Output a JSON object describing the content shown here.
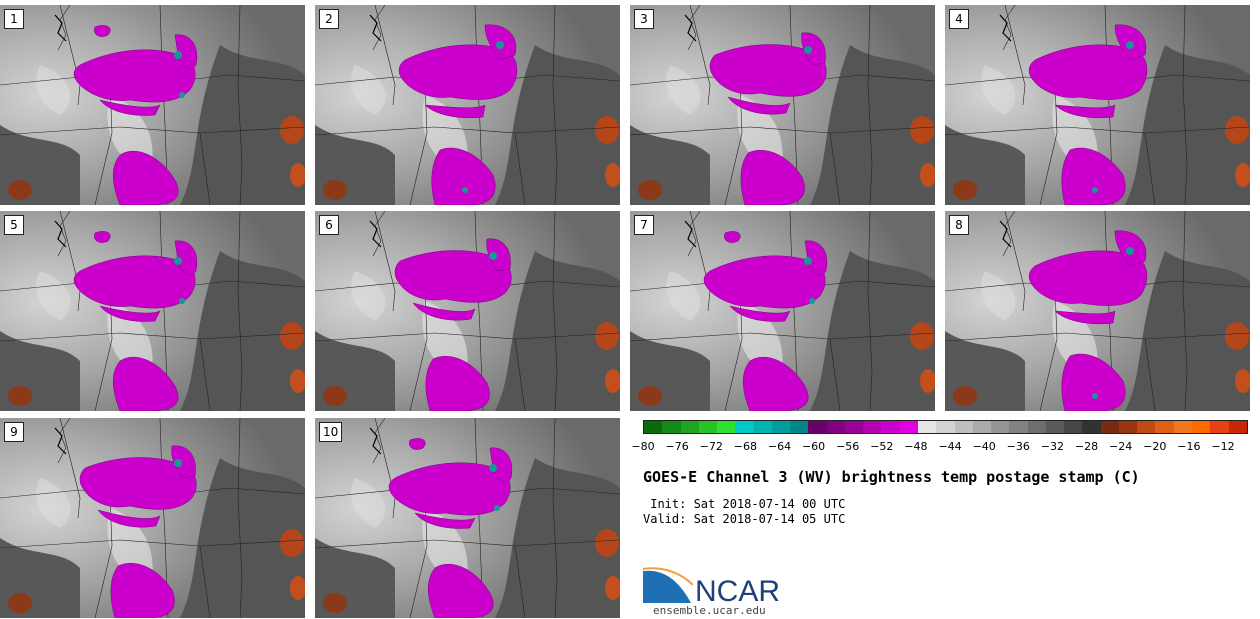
{
  "panels": [
    "1",
    "2",
    "3",
    "4",
    "5",
    "6",
    "7",
    "8",
    "9",
    "10"
  ],
  "title": "GOES-E Channel 3 (WV) brightness temp postage stamp (C)",
  "init_line": " Init: Sat 2018-07-14 00 UTC",
  "valid_line": "Valid: Sat 2018-07-14 05 UTC",
  "colorbar": {
    "ticks": [
      "−80",
      "−76",
      "−72",
      "−68",
      "−64",
      "−60",
      "−56",
      "−52",
      "−48",
      "−44",
      "−40",
      "−36",
      "−32",
      "−28",
      "−24",
      "−20",
      "−16",
      "−12"
    ],
    "colors": [
      "#0a6b0a",
      "#138a13",
      "#1ea61e",
      "#27c327",
      "#30e030",
      "#00c8c8",
      "#00b3b3",
      "#009d9d",
      "#008888",
      "#6a006a",
      "#820082",
      "#9a009a",
      "#b300b3",
      "#cc00cc",
      "#e000e0",
      "#e6e6e6",
      "#d2d2d2",
      "#bebebe",
      "#aaaaaa",
      "#969696",
      "#828282",
      "#6e6e6e",
      "#5a5a5a",
      "#464646",
      "#323232",
      "#7a2a10",
      "#9a3512",
      "#c04a14",
      "#e06018",
      "#f07820",
      "#ff6a00",
      "#e84010",
      "#c82808"
    ]
  },
  "logo": {
    "text": "NCAR",
    "url": "ensemble.ucar.edu"
  }
}
